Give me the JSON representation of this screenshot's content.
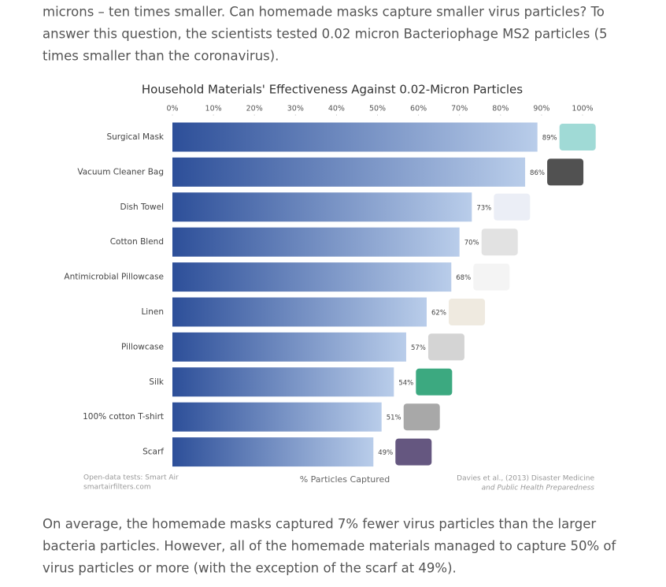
{
  "intro": [
    "microns – ten times smaller. Can homemade masks capture smaller virus particles? To",
    "answer this question, the scientists tested 0.02 micron Bacteriophage MS2 particles (5",
    "times smaller than the coronavirus)."
  ],
  "chart_data": {
    "type": "bar",
    "orientation": "horizontal",
    "title": "Household Materials' Effectiveness Against 0.02-Micron Particles",
    "xlabel": "% Particles Captured",
    "categories": [
      "Surgical Mask",
      "Vacuum Cleaner Bag",
      "Dish Towel",
      "Cotton Blend",
      "Antimicrobial Pillowcase",
      "Linen",
      "Pillowcase",
      "Silk",
      "100% cotton T-shirt",
      "Scarf"
    ],
    "values": [
      89,
      86,
      73,
      70,
      68,
      62,
      57,
      54,
      51,
      49
    ],
    "value_labels": [
      "89%",
      "86%",
      "73%",
      "70%",
      "68%",
      "62%",
      "57%",
      "54%",
      "51%",
      "49%"
    ],
    "color": [
      "#2d4f99",
      "#b9cdea"
    ],
    "xlim": [
      0,
      100
    ],
    "xticks": [
      {
        "value": 0,
        "label": "0%"
      },
      {
        "value": 10,
        "label": "10%"
      },
      {
        "value": 20,
        "label": "20%"
      },
      {
        "value": 30,
        "label": "30%"
      },
      {
        "value": 40,
        "label": "40%"
      },
      {
        "value": 50,
        "label": "50%"
      },
      {
        "value": 60,
        "label": "60%"
      },
      {
        "value": 70,
        "label": "70%"
      },
      {
        "value": 80,
        "label": "80%"
      },
      {
        "value": 90,
        "label": "90%"
      },
      {
        "value": 100,
        "label": "100%"
      }
    ],
    "source_left": [
      "Open-data tests: Smart Air",
      "smartairfilters.com"
    ],
    "source_right": [
      "Davies et al., (2013) Disaster Medicine",
      "and Public Health Preparedness"
    ]
  },
  "outro": [
    "On average, the homemade masks captured 7% fewer virus particles than the larger",
    "bacteria particles. However, all of the homemade materials managed to capture 50% of",
    "virus particles or more (with the exception of the scarf at 49%)."
  ]
}
